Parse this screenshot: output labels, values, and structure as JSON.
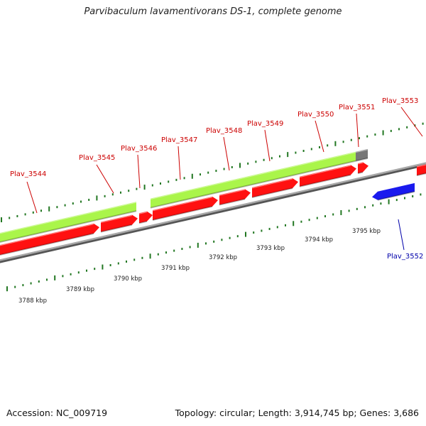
{
  "title": "Parvibaculum lavamentivorans DS-1, complete genome",
  "footer": {
    "accession": "Accession: NC_009719",
    "topology": "Topology: circular; Length: 3,914,745 bp; Genes: 3,686"
  },
  "colors": {
    "forward_gene": "#ff1111",
    "reverse_gene": "#1a1aee",
    "cds_feature": "#aaf54a",
    "other_feature": "#777777",
    "backbone": "#888888",
    "tick": "#227722",
    "forward_label": "#cc0000",
    "reverse_label": "#0000aa"
  },
  "genes": [
    {
      "id": "g3544",
      "label": "Plav_3544",
      "strand": "forward"
    },
    {
      "id": "g3545",
      "label": "Plav_3545",
      "strand": "forward"
    },
    {
      "id": "g3546",
      "label": "Plav_3546",
      "strand": "forward"
    },
    {
      "id": "g3547",
      "label": "Plav_3547",
      "strand": "forward"
    },
    {
      "id": "g3548",
      "label": "Plav_3548",
      "strand": "forward"
    },
    {
      "id": "g3549",
      "label": "Plav_3549",
      "strand": "forward"
    },
    {
      "id": "g3550",
      "label": "Plav_3550",
      "strand": "forward"
    },
    {
      "id": "g3551",
      "label": "Plav_3551",
      "strand": "forward"
    },
    {
      "id": "g3553",
      "label": "Plav_3553",
      "strand": "forward"
    },
    {
      "id": "g3552",
      "label": "Plav_3552",
      "strand": "reverse"
    }
  ],
  "kbp_ticks": [
    "3788 kbp",
    "3789 kbp",
    "3790 kbp",
    "3791 kbp",
    "3792 kbp",
    "3793 kbp",
    "3794 kbp",
    "3795 kbp"
  ]
}
